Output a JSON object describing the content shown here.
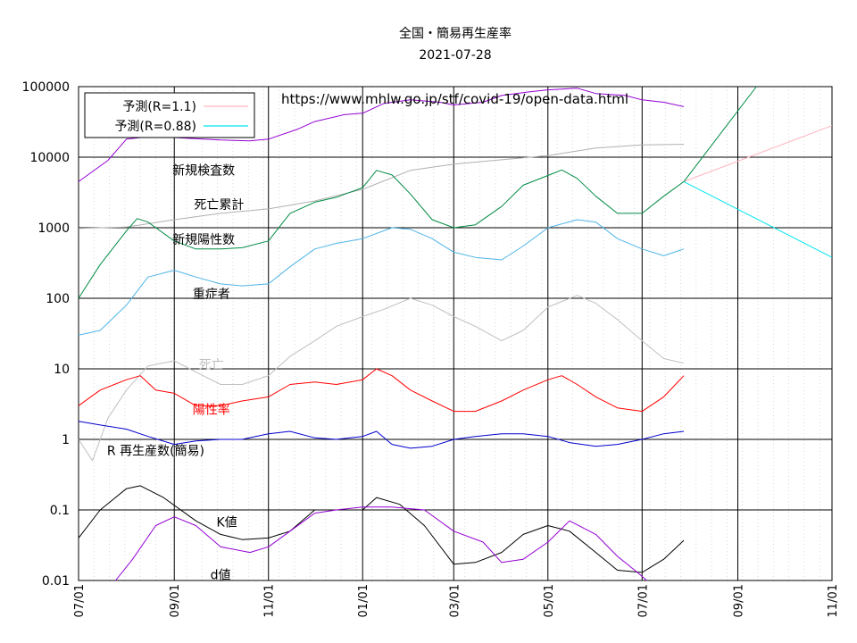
{
  "chart_data": {
    "type": "line",
    "title": "全国・簡易再生産率",
    "subtitle": "2021-07-28",
    "source_url": "https://www.mhlw.go.jp/stf/covid-19/open-data.html",
    "y_scale": "log",
    "ylim": [
      0.01,
      100000
    ],
    "y_ticks": [
      "100000",
      "10000",
      "1000",
      "100",
      "10",
      "1",
      "0.1",
      "0.01"
    ],
    "x_ticks": [
      "07/01",
      "09/01",
      "11/01",
      "01/01",
      "03/01",
      "05/01",
      "07/01",
      "09/01",
      "11/01"
    ],
    "x_tick_dates": [
      "2020-07-01",
      "2020-09-01",
      "2020-11-01",
      "2021-01-01",
      "2021-03-01",
      "2021-05-01",
      "2021-07-01",
      "2021-09-01",
      "2021-11-01"
    ],
    "xlim": [
      "2020-07-01",
      "2021-11-01"
    ],
    "grid": true,
    "legend_position": "top-left",
    "legend": [
      {
        "label": "予測(R=1.1)",
        "color": "#ffb6c1"
      },
      {
        "label": "予測(R=0.88)",
        "color": "#00e5ee"
      }
    ],
    "series": [
      {
        "key": "tests",
        "name": "新規検査数",
        "color": "#9400d3",
        "points": [
          [
            "2020-07-01",
            4500
          ],
          [
            "2020-07-20",
            9000
          ],
          [
            "2020-08-01",
            18000
          ],
          [
            "2020-08-20",
            20000
          ],
          [
            "2020-09-01",
            19000
          ],
          [
            "2020-09-20",
            18000
          ],
          [
            "2020-10-01",
            17500
          ],
          [
            "2020-10-20",
            17000
          ],
          [
            "2020-11-01",
            18000
          ],
          [
            "2020-11-20",
            25000
          ],
          [
            "2020-12-01",
            32000
          ],
          [
            "2020-12-20",
            40000
          ],
          [
            "2021-01-01",
            42000
          ],
          [
            "2021-01-15",
            58000
          ],
          [
            "2021-02-01",
            65000
          ],
          [
            "2021-02-20",
            60000
          ],
          [
            "2021-03-01",
            55000
          ],
          [
            "2021-03-20",
            60000
          ],
          [
            "2021-04-01",
            75000
          ],
          [
            "2021-04-20",
            85000
          ],
          [
            "2021-05-01",
            90000
          ],
          [
            "2021-05-20",
            95000
          ],
          [
            "2021-06-01",
            80000
          ],
          [
            "2021-06-20",
            75000
          ],
          [
            "2021-07-01",
            65000
          ],
          [
            "2021-07-15",
            60000
          ],
          [
            "2021-07-28",
            52000
          ]
        ]
      },
      {
        "key": "deaths_cumulative",
        "name": "死亡累計",
        "color": "#b0b0b0",
        "points": [
          [
            "2020-07-01",
            980
          ],
          [
            "2020-08-01",
            1020
          ],
          [
            "2020-09-01",
            1300
          ],
          [
            "2020-10-01",
            1600
          ],
          [
            "2020-11-01",
            1850
          ],
          [
            "2020-12-01",
            2400
          ],
          [
            "2021-01-01",
            3500
          ],
          [
            "2021-02-01",
            6500
          ],
          [
            "2021-03-01",
            8000
          ],
          [
            "2021-04-01",
            9200
          ],
          [
            "2021-05-01",
            10500
          ],
          [
            "2021-06-01",
            13500
          ],
          [
            "2021-07-01",
            14900
          ],
          [
            "2021-07-28",
            15200
          ]
        ]
      },
      {
        "key": "positives",
        "name": "新規陽性数",
        "color": "#008b45",
        "points": [
          [
            "2020-07-01",
            100
          ],
          [
            "2020-07-15",
            300
          ],
          [
            "2020-08-01",
            900
          ],
          [
            "2020-08-08",
            1350
          ],
          [
            "2020-08-15",
            1200
          ],
          [
            "2020-09-01",
            650
          ],
          [
            "2020-09-15",
            500
          ],
          [
            "2020-10-01",
            500
          ],
          [
            "2020-10-15",
            520
          ],
          [
            "2020-11-01",
            650
          ],
          [
            "2020-11-15",
            1600
          ],
          [
            "2020-12-01",
            2300
          ],
          [
            "2020-12-15",
            2700
          ],
          [
            "2021-01-01",
            3700
          ],
          [
            "2021-01-10",
            6500
          ],
          [
            "2021-01-20",
            5600
          ],
          [
            "2021-02-01",
            3000
          ],
          [
            "2021-02-15",
            1300
          ],
          [
            "2021-03-01",
            1000
          ],
          [
            "2021-03-15",
            1100
          ],
          [
            "2021-04-01",
            2000
          ],
          [
            "2021-04-15",
            4000
          ],
          [
            "2021-05-01",
            5500
          ],
          [
            "2021-05-10",
            6600
          ],
          [
            "2021-05-20",
            5000
          ],
          [
            "2021-06-01",
            2800
          ],
          [
            "2021-06-15",
            1600
          ],
          [
            "2021-07-01",
            1600
          ],
          [
            "2021-07-15",
            2800
          ],
          [
            "2021-07-28",
            4500
          ]
        ]
      },
      {
        "key": "severe",
        "name": "重症者",
        "color": "#4eb4e6",
        "points": [
          [
            "2020-07-01",
            30
          ],
          [
            "2020-07-15",
            35
          ],
          [
            "2020-08-01",
            80
          ],
          [
            "2020-08-15",
            200
          ],
          [
            "2020-09-01",
            250
          ],
          [
            "2020-09-15",
            200
          ],
          [
            "2020-10-01",
            160
          ],
          [
            "2020-10-15",
            150
          ],
          [
            "2020-11-01",
            160
          ],
          [
            "2020-11-15",
            280
          ],
          [
            "2020-12-01",
            500
          ],
          [
            "2020-12-15",
            600
          ],
          [
            "2021-01-01",
            700
          ],
          [
            "2021-01-20",
            1000
          ],
          [
            "2021-02-01",
            950
          ],
          [
            "2021-02-15",
            700
          ],
          [
            "2021-03-01",
            450
          ],
          [
            "2021-03-15",
            380
          ],
          [
            "2021-04-01",
            350
          ],
          [
            "2021-04-15",
            550
          ],
          [
            "2021-05-01",
            1000
          ],
          [
            "2021-05-20",
            1300
          ],
          [
            "2021-06-01",
            1200
          ],
          [
            "2021-06-15",
            700
          ],
          [
            "2021-07-01",
            500
          ],
          [
            "2021-07-15",
            400
          ],
          [
            "2021-07-28",
            500
          ]
        ]
      },
      {
        "key": "deaths",
        "name": "死亡",
        "color": "#c0c0c0",
        "points": [
          [
            "2020-07-01",
            1
          ],
          [
            "2020-07-10",
            0.5
          ],
          [
            "2020-07-20",
            2
          ],
          [
            "2020-08-01",
            5
          ],
          [
            "2020-08-15",
            11
          ],
          [
            "2020-09-01",
            13
          ],
          [
            "2020-09-15",
            9
          ],
          [
            "2020-10-01",
            6
          ],
          [
            "2020-10-15",
            6
          ],
          [
            "2020-11-01",
            8
          ],
          [
            "2020-11-15",
            15
          ],
          [
            "2020-12-01",
            25
          ],
          [
            "2020-12-15",
            40
          ],
          [
            "2021-01-01",
            55
          ],
          [
            "2021-01-15",
            70
          ],
          [
            "2021-02-01",
            100
          ],
          [
            "2021-02-15",
            80
          ],
          [
            "2021-03-01",
            55
          ],
          [
            "2021-03-15",
            40
          ],
          [
            "2021-04-01",
            25
          ],
          [
            "2021-04-15",
            35
          ],
          [
            "2021-05-01",
            75
          ],
          [
            "2021-05-20",
            110
          ],
          [
            "2021-06-01",
            85
          ],
          [
            "2021-06-15",
            50
          ],
          [
            "2021-07-01",
            25
          ],
          [
            "2021-07-15",
            14
          ],
          [
            "2021-07-28",
            12
          ]
        ]
      },
      {
        "key": "positivity_rate",
        "name": "陽性率",
        "color": "#ff0000",
        "points": [
          [
            "2020-07-01",
            3
          ],
          [
            "2020-07-15",
            5
          ],
          [
            "2020-08-01",
            7
          ],
          [
            "2020-08-10",
            8
          ],
          [
            "2020-08-20",
            5
          ],
          [
            "2020-09-01",
            4.5
          ],
          [
            "2020-09-15",
            3
          ],
          [
            "2020-10-01",
            3
          ],
          [
            "2020-10-15",
            3.5
          ],
          [
            "2020-11-01",
            4
          ],
          [
            "2020-11-15",
            6
          ],
          [
            "2020-12-01",
            6.5
          ],
          [
            "2020-12-15",
            6
          ],
          [
            "2021-01-01",
            7
          ],
          [
            "2021-01-10",
            10
          ],
          [
            "2021-01-20",
            8
          ],
          [
            "2021-02-01",
            5
          ],
          [
            "2021-02-15",
            3.5
          ],
          [
            "2021-03-01",
            2.5
          ],
          [
            "2021-03-15",
            2.5
          ],
          [
            "2021-04-01",
            3.5
          ],
          [
            "2021-04-15",
            5
          ],
          [
            "2021-05-01",
            7
          ],
          [
            "2021-05-10",
            8
          ],
          [
            "2021-05-20",
            6
          ],
          [
            "2021-06-01",
            4
          ],
          [
            "2021-06-15",
            2.8
          ],
          [
            "2021-07-01",
            2.5
          ],
          [
            "2021-07-15",
            4
          ],
          [
            "2021-07-28",
            8
          ]
        ]
      },
      {
        "key": "reproduction_number",
        "name": "R 再生産数(簡易)",
        "color": "#0000cd",
        "points": [
          [
            "2020-07-01",
            1.8
          ],
          [
            "2020-07-15",
            1.6
          ],
          [
            "2020-08-01",
            1.4
          ],
          [
            "2020-08-15",
            1.1
          ],
          [
            "2020-09-01",
            0.85
          ],
          [
            "2020-09-15",
            0.95
          ],
          [
            "2020-10-01",
            1.0
          ],
          [
            "2020-10-15",
            1.0
          ],
          [
            "2020-11-01",
            1.2
          ],
          [
            "2020-11-15",
            1.3
          ],
          [
            "2020-12-01",
            1.05
          ],
          [
            "2020-12-15",
            1.0
          ],
          [
            "2021-01-01",
            1.1
          ],
          [
            "2021-01-10",
            1.3
          ],
          [
            "2021-01-20",
            0.85
          ],
          [
            "2021-02-01",
            0.75
          ],
          [
            "2021-02-15",
            0.8
          ],
          [
            "2021-03-01",
            1.0
          ],
          [
            "2021-03-15",
            1.1
          ],
          [
            "2021-04-01",
            1.2
          ],
          [
            "2021-04-15",
            1.2
          ],
          [
            "2021-05-01",
            1.1
          ],
          [
            "2021-05-15",
            0.9
          ],
          [
            "2021-06-01",
            0.8
          ],
          [
            "2021-06-15",
            0.85
          ],
          [
            "2021-07-01",
            1.0
          ],
          [
            "2021-07-15",
            1.2
          ],
          [
            "2021-07-28",
            1.3
          ]
        ]
      },
      {
        "key": "k_value",
        "name": "K値",
        "color": "#000000",
        "points": [
          [
            "2020-07-01",
            0.04
          ],
          [
            "2020-07-15",
            0.1
          ],
          [
            "2020-08-01",
            0.2
          ],
          [
            "2020-08-10",
            0.22
          ],
          [
            "2020-08-25",
            0.15
          ],
          [
            "2020-09-15",
            0.07
          ],
          [
            "2020-10-01",
            0.045
          ],
          [
            "2020-10-15",
            0.038
          ],
          [
            "2020-11-01",
            0.04
          ],
          [
            "2020-11-15",
            0.05
          ],
          [
            "2020-12-01",
            0.1
          ],
          [
            "2020-12-15",
            0.1
          ],
          [
            "2021-01-01",
            0.1
          ],
          [
            "2021-01-10",
            0.15
          ],
          [
            "2021-01-25",
            0.12
          ],
          [
            "2021-02-10",
            0.06
          ],
          [
            "2021-03-01",
            0.017
          ],
          [
            "2021-03-15",
            0.018
          ],
          [
            "2021-04-01",
            0.025
          ],
          [
            "2021-04-15",
            0.045
          ],
          [
            "2021-05-01",
            0.06
          ],
          [
            "2021-05-15",
            0.05
          ],
          [
            "2021-06-01",
            0.025
          ],
          [
            "2021-06-15",
            0.014
          ],
          [
            "2021-07-01",
            0.013
          ],
          [
            "2021-07-15",
            0.02
          ],
          [
            "2021-07-28",
            0.037
          ]
        ]
      },
      {
        "key": "d_value",
        "name": "d値",
        "color": "#9400d3",
        "points": [
          [
            "2020-07-25",
            0.01
          ],
          [
            "2020-08-05",
            0.02
          ],
          [
            "2020-08-20",
            0.06
          ],
          [
            "2020-09-01",
            0.08
          ],
          [
            "2020-09-15",
            0.06
          ],
          [
            "2020-10-01",
            0.03
          ],
          [
            "2020-10-20",
            0.025
          ],
          [
            "2020-11-01",
            0.03
          ],
          [
            "2020-11-15",
            0.05
          ],
          [
            "2020-12-01",
            0.09
          ],
          [
            "2020-12-15",
            0.1
          ],
          [
            "2021-01-01",
            0.11
          ],
          [
            "2021-01-20",
            0.11
          ],
          [
            "2021-02-10",
            0.1
          ],
          [
            "2021-03-01",
            0.05
          ],
          [
            "2021-03-20",
            0.035
          ],
          [
            "2021-04-01",
            0.018
          ],
          [
            "2021-04-15",
            0.02
          ],
          [
            "2021-05-01",
            0.035
          ],
          [
            "2021-05-15",
            0.07
          ],
          [
            "2021-06-01",
            0.045
          ],
          [
            "2021-06-15",
            0.022
          ],
          [
            "2021-06-28",
            0.013
          ],
          [
            "2021-07-04",
            0.01
          ]
        ]
      },
      {
        "key": "forecast_r110",
        "name": "予測(R=1.1)",
        "color": "#ffb6c1",
        "points": [
          [
            "2021-07-28",
            4500
          ],
          [
            "2021-11-01",
            28000
          ]
        ]
      },
      {
        "key": "forecast_r088",
        "name": "予測(R=0.88)",
        "color": "#00e5ee",
        "points": [
          [
            "2021-07-28",
            4500
          ],
          [
            "2021-11-01",
            380
          ]
        ]
      },
      {
        "key": "forecast_green",
        "name": "",
        "color": "#008b45",
        "points": [
          [
            "2021-07-28",
            4500
          ],
          [
            "2021-09-13",
            100000
          ]
        ]
      }
    ],
    "annotations": [
      {
        "text": "新規検査数",
        "color": "#000000",
        "date": "2020-09-20",
        "value": 5700
      },
      {
        "text": "死亡累計",
        "color": "#000000",
        "date": "2020-09-30",
        "value": 1850
      },
      {
        "text": "新規陽性数",
        "color": "#000000",
        "date": "2020-09-20",
        "value": 590
      },
      {
        "text": "重症者",
        "color": "#000000",
        "date": "2020-09-25",
        "value": 100
      },
      {
        "text": "死亡",
        "color": "#c0c0c0",
        "date": "2020-09-25",
        "value": 10
      },
      {
        "text": "陽性率",
        "color": "#ff0000",
        "date": "2020-09-25",
        "value": 2.3
      },
      {
        "text": "R 再生産数(簡易)",
        "color": "#000000",
        "date": "2020-08-20",
        "value": 0.6
      },
      {
        "text": "K値",
        "color": "#000000",
        "date": "2020-10-05",
        "value": 0.058
      },
      {
        "text": "d値",
        "color": "#000000",
        "date": "2020-10-01",
        "value": 0.0105
      }
    ]
  }
}
